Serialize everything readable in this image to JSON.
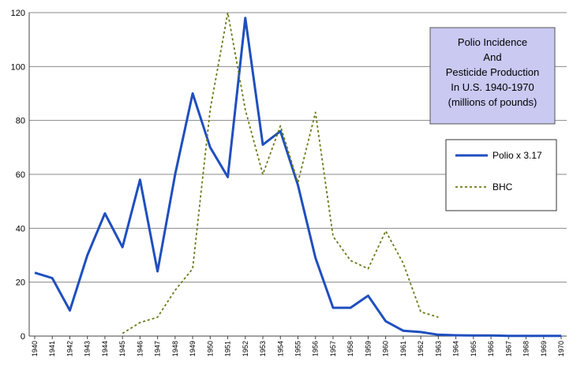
{
  "chart_data": {
    "type": "line",
    "title_lines": [
      "Polio Incidence",
      "And",
      "Pesticide Production",
      "In U.S. 1940-1970",
      "(millions of pounds)"
    ],
    "xlabel": "",
    "ylabel": "",
    "ylim": [
      0,
      120
    ],
    "y_ticks": [
      0,
      20,
      40,
      60,
      80,
      100,
      120
    ],
    "x": [
      1940,
      1941,
      1942,
      1943,
      1944,
      1945,
      1946,
      1947,
      1948,
      1949,
      1950,
      1951,
      1952,
      1953,
      1954,
      1955,
      1956,
      1957,
      1958,
      1959,
      1960,
      1961,
      1962,
      1963,
      1964,
      1965,
      1966,
      1967,
      1968,
      1969,
      1970
    ],
    "grid": "horizontal",
    "legend_position": "right",
    "series": [
      {
        "name": "Polio x 3.17",
        "color": "#1f4fbf",
        "style": "solid",
        "x": [
          1940,
          1941,
          1942,
          1943,
          1944,
          1945,
          1946,
          1947,
          1948,
          1949,
          1950,
          1951,
          1952,
          1953,
          1954,
          1955,
          1956,
          1957,
          1958,
          1959,
          1960,
          1961,
          1962,
          1963,
          1964,
          1965,
          1966,
          1967,
          1968,
          1969,
          1970
        ],
        "values": [
          23.5,
          21.5,
          9.5,
          30,
          45.5,
          33,
          58,
          24,
          60,
          90,
          70,
          59,
          118,
          71,
          76,
          56,
          29,
          10.5,
          10.5,
          15,
          5.5,
          2,
          1.5,
          0.5,
          0.3,
          0.2,
          0.2,
          0.1,
          0.1,
          0.1,
          0.1
        ]
      },
      {
        "name": "BHC",
        "color": "#6b7a1a",
        "style": "dashed",
        "x": [
          1945,
          1946,
          1947,
          1948,
          1949,
          1950,
          1951,
          1952,
          1953,
          1954,
          1955,
          1956,
          1957,
          1958,
          1959,
          1960,
          1961,
          1962,
          1963
        ],
        "values": [
          1,
          5,
          7,
          17,
          25,
          84,
          120,
          84,
          60,
          78,
          57,
          83,
          37,
          28,
          25,
          39,
          27,
          9,
          7
        ]
      }
    ]
  }
}
